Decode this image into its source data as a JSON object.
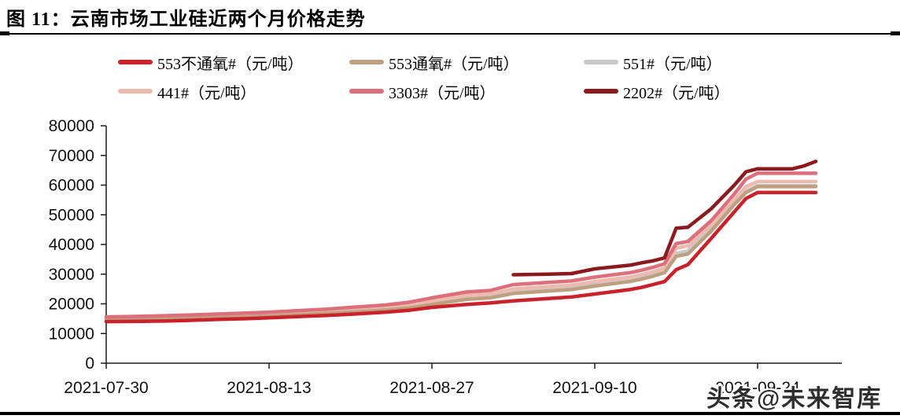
{
  "figure": {
    "title": "图 11：云南市场工业硅近两个月价格走势",
    "watermark": "头条@未来智库"
  },
  "chart_data": {
    "type": "line",
    "title": "云南市场工业硅近两个月价格走势",
    "xlabel": "",
    "ylabel": "",
    "unit": "元/吨",
    "ylim": [
      0,
      80000
    ],
    "ytick_step": 10000,
    "grid": false,
    "legend_position": "top",
    "xtick_labels": [
      "2021-07-30",
      "2021-08-13",
      "2021-08-27",
      "2021-09-10",
      "2021-09-24"
    ],
    "x": [
      "2021-07-30",
      "2021-08-02",
      "2021-08-04",
      "2021-08-06",
      "2021-08-09",
      "2021-08-11",
      "2021-08-13",
      "2021-08-16",
      "2021-08-18",
      "2021-08-20",
      "2021-08-23",
      "2021-08-25",
      "2021-08-27",
      "2021-08-30",
      "2021-09-01",
      "2021-09-03",
      "2021-09-06",
      "2021-09-08",
      "2021-09-10",
      "2021-09-13",
      "2021-09-14",
      "2021-09-15",
      "2021-09-16",
      "2021-09-17",
      "2021-09-18",
      "2021-09-20",
      "2021-09-22",
      "2021-09-23",
      "2021-09-24",
      "2021-09-27",
      "2021-09-28",
      "2021-09-29"
    ],
    "series": [
      {
        "id": "553-no-o2",
        "name": "553不通氧#（元/吨）",
        "color": "#C9222B",
        "values": [
          14000,
          14100,
          14200,
          14400,
          14800,
          15000,
          15300,
          15800,
          16100,
          16500,
          17200,
          17800,
          18800,
          19800,
          20300,
          21000,
          21800,
          22300,
          23300,
          24800,
          25500,
          26500,
          27500,
          31500,
          33200,
          42000,
          51000,
          55500,
          57500,
          57500,
          57500,
          57500
        ]
      },
      {
        "id": "553-o2",
        "name": "553通氧#（元/吨）",
        "color": "#BEA081",
        "values": [
          14700,
          14800,
          14900,
          15100,
          15400,
          15600,
          15900,
          16400,
          16800,
          17200,
          17900,
          18600,
          19800,
          21500,
          22000,
          23500,
          24300,
          24800,
          26000,
          27500,
          28300,
          29300,
          30500,
          36000,
          36800,
          44500,
          53500,
          57500,
          59500,
          59500,
          59500,
          59500
        ]
      },
      {
        "id": "551",
        "name": "551#（元/吨）",
        "color": "#C8C8C8",
        "values": [
          14900,
          15000,
          15100,
          15300,
          15700,
          15900,
          16200,
          16700,
          17100,
          17600,
          18300,
          19000,
          20300,
          22000,
          22500,
          24000,
          24800,
          25300,
          26500,
          28000,
          28800,
          29800,
          31000,
          37000,
          37800,
          45500,
          54000,
          58000,
          59800,
          59800,
          59800,
          59800
        ]
      },
      {
        "id": "441",
        "name": "441#（元/吨）",
        "color": "#EDBAAF",
        "values": [
          15200,
          15300,
          15400,
          15600,
          16000,
          16200,
          16500,
          17100,
          17500,
          18000,
          18800,
          19500,
          21000,
          22800,
          23300,
          25000,
          25800,
          26300,
          27500,
          29000,
          29800,
          30800,
          32000,
          38800,
          39500,
          46500,
          55000,
          59500,
          61200,
          61200,
          61200,
          61200
        ]
      },
      {
        "id": "3303",
        "name": "3303#（元/吨）",
        "color": "#DD6F7B",
        "values": [
          15600,
          15800,
          16000,
          16200,
          16600,
          16900,
          17200,
          17800,
          18200,
          18800,
          19600,
          20500,
          22000,
          24000,
          24500,
          26500,
          27200,
          27700,
          29000,
          30500,
          31300,
          32300,
          33500,
          40300,
          41000,
          48000,
          57000,
          62000,
          64000,
          64000,
          64000,
          64000
        ]
      },
      {
        "id": "2202",
        "name": "2202#（元/吨）",
        "color": "#8C191E",
        "values": [
          null,
          null,
          null,
          null,
          null,
          null,
          null,
          null,
          null,
          null,
          null,
          null,
          null,
          null,
          null,
          29800,
          30000,
          30200,
          31800,
          33000,
          33800,
          34500,
          35500,
          45500,
          45800,
          52000,
          60000,
          64500,
          65500,
          65500,
          66500,
          68000
        ]
      }
    ]
  }
}
